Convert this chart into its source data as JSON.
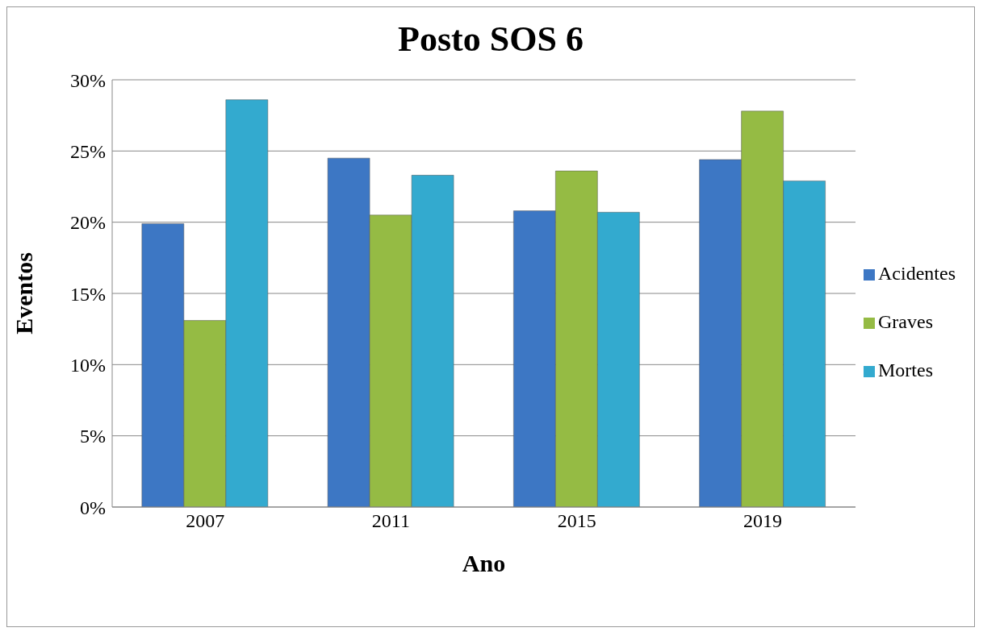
{
  "chart_data": {
    "type": "bar",
    "title": "Posto SOS 6",
    "xlabel": "Ano",
    "ylabel": "Eventos",
    "categories": [
      "2007",
      "2011",
      "2015",
      "2019"
    ],
    "series": [
      {
        "name": "Acidentes",
        "color": "#3d77c4",
        "values": [
          19.9,
          24.5,
          20.8,
          24.4
        ]
      },
      {
        "name": "Graves",
        "color": "#95bb44",
        "values": [
          13.1,
          20.5,
          23.6,
          27.8
        ]
      },
      {
        "name": "Mortes",
        "color": "#33aacf",
        "values": [
          28.6,
          23.3,
          20.7,
          22.9
        ]
      }
    ],
    "ylim": [
      0,
      30
    ],
    "yticks": [
      {
        "value": 0,
        "label": "0%"
      },
      {
        "value": 5,
        "label": "5%"
      },
      {
        "value": 10,
        "label": "10%"
      },
      {
        "value": 15,
        "label": "15%"
      },
      {
        "value": 20,
        "label": "20%"
      },
      {
        "value": 25,
        "label": "25%"
      },
      {
        "value": 30,
        "label": "30%"
      }
    ],
    "grid": "y",
    "legend": "right"
  }
}
